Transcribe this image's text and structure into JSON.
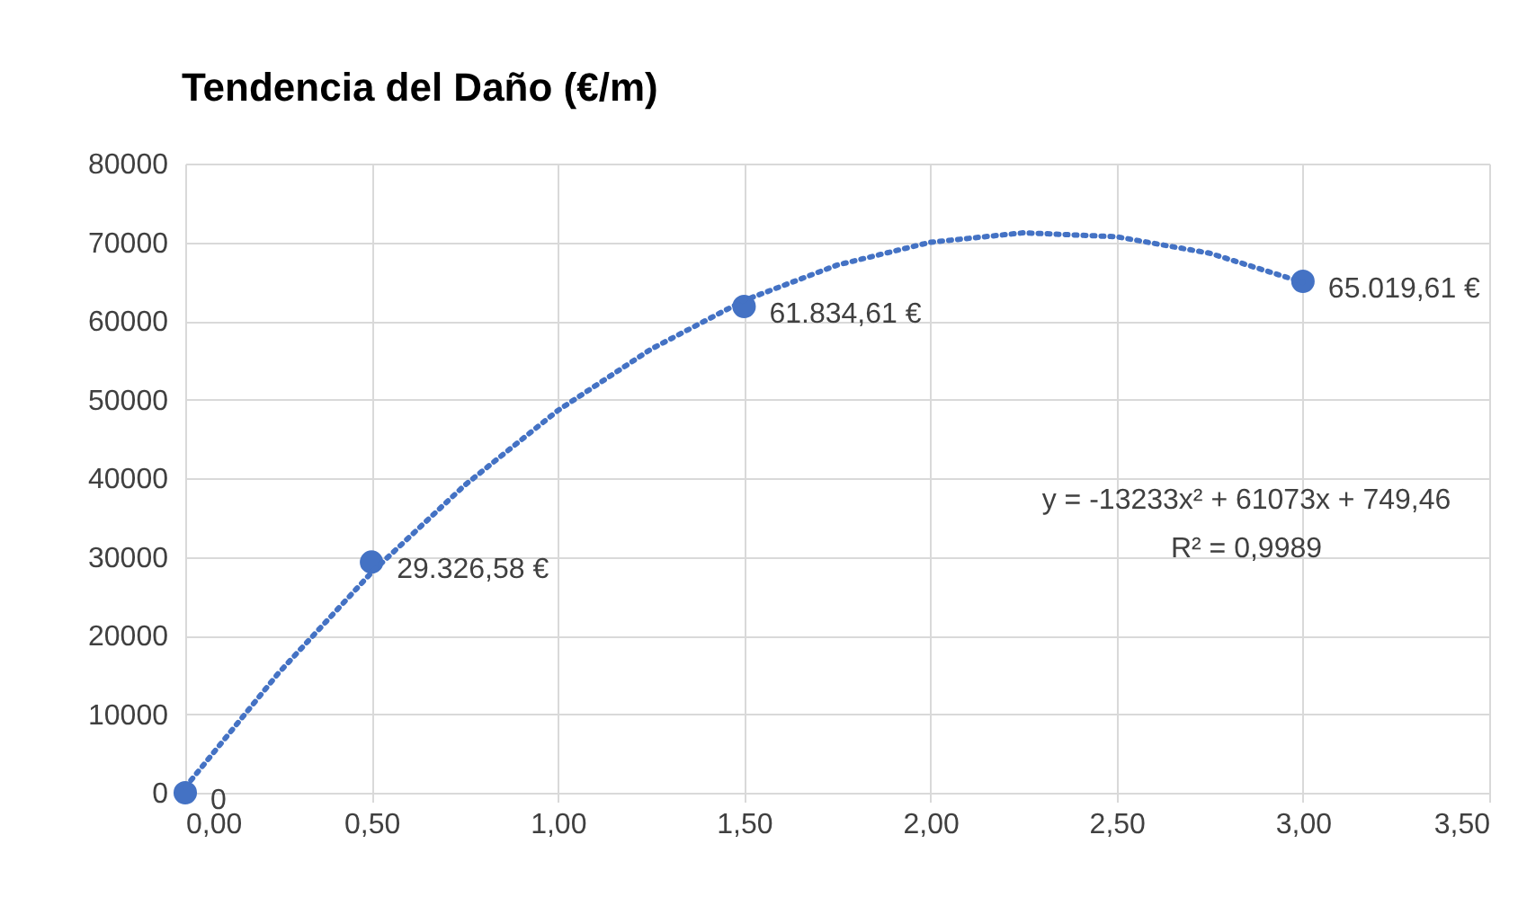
{
  "chart_data": {
    "type": "scatter",
    "title": "Tendencia del Daño (€/m)",
    "x": [
      0,
      0.5,
      1.5,
      3
    ],
    "series": [
      {
        "color": "#4472c4",
        "values": [
          0,
          29326.58,
          61834.61,
          65019.61
        ],
        "value_labels": [
          "0",
          "29.326,58 €",
          "61.834,61 €",
          "65.019,61 €"
        ],
        "marker": "circle"
      },
      {
        "type": "line",
        "color": "#4472c4",
        "line_style": "dotted",
        "marker": "none",
        "x": [
          0,
          0.25,
          0.5,
          0.75,
          1,
          1.25,
          1.5,
          1.75,
          2,
          2.25,
          2.5,
          2.75,
          3
        ],
        "values": [
          700,
          15200,
          28000,
          39100,
          48600,
          56400,
          62600,
          67100,
          70000,
          71200,
          70700,
          68600,
          64900
        ]
      }
    ],
    "xlim": [
      0,
      3.5
    ],
    "xticks": [
      {
        "value": 0,
        "label": "0,00"
      },
      {
        "value": 0.5,
        "label": "0,50"
      },
      {
        "value": 1,
        "label": "1,00"
      },
      {
        "value": 1.5,
        "label": "1,50"
      },
      {
        "value": 2,
        "label": "2,00"
      },
      {
        "value": 2.5,
        "label": "2,50"
      },
      {
        "value": 3,
        "label": "3,00"
      },
      {
        "value": 3.5,
        "label": "3,50"
      }
    ],
    "ylim": [
      0,
      80000
    ],
    "yticks": [
      0,
      10000,
      20000,
      30000,
      40000,
      50000,
      60000,
      70000,
      80000
    ],
    "grid": true,
    "annotations": [
      "y = -13233x² + 61073x + 749,46",
      "R² = 0,9989"
    ]
  }
}
